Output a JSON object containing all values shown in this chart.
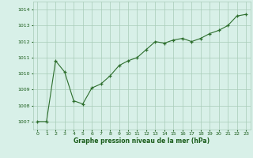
{
  "x": [
    0,
    1,
    2,
    3,
    4,
    5,
    6,
    7,
    8,
    9,
    10,
    11,
    12,
    13,
    14,
    15,
    16,
    17,
    18,
    19,
    20,
    21,
    22,
    23
  ],
  "y": [
    1007.0,
    1007.0,
    1010.8,
    1010.1,
    1008.3,
    1008.1,
    1009.1,
    1009.35,
    1009.85,
    1010.5,
    1010.8,
    1011.0,
    1011.5,
    1012.0,
    1011.9,
    1012.1,
    1012.2,
    1012.0,
    1012.2,
    1012.5,
    1012.7,
    1013.0,
    1013.6,
    1013.7
  ],
  "ylim": [
    1006.5,
    1014.5
  ],
  "xlim": [
    -0.5,
    23.5
  ],
  "yticks": [
    1007,
    1008,
    1009,
    1010,
    1011,
    1012,
    1013,
    1014
  ],
  "xticks": [
    0,
    1,
    2,
    3,
    4,
    5,
    6,
    7,
    8,
    9,
    10,
    11,
    12,
    13,
    14,
    15,
    16,
    17,
    18,
    19,
    20,
    21,
    22,
    23
  ],
  "line_color": "#2d6e2d",
  "marker_color": "#2d6e2d",
  "bg_color": "#d8f0e8",
  "grid_color": "#a8ccb8",
  "xlabel": "Graphe pression niveau de la mer (hPa)",
  "xlabel_color": "#1a5c1a",
  "tick_color": "#1a5c1a"
}
